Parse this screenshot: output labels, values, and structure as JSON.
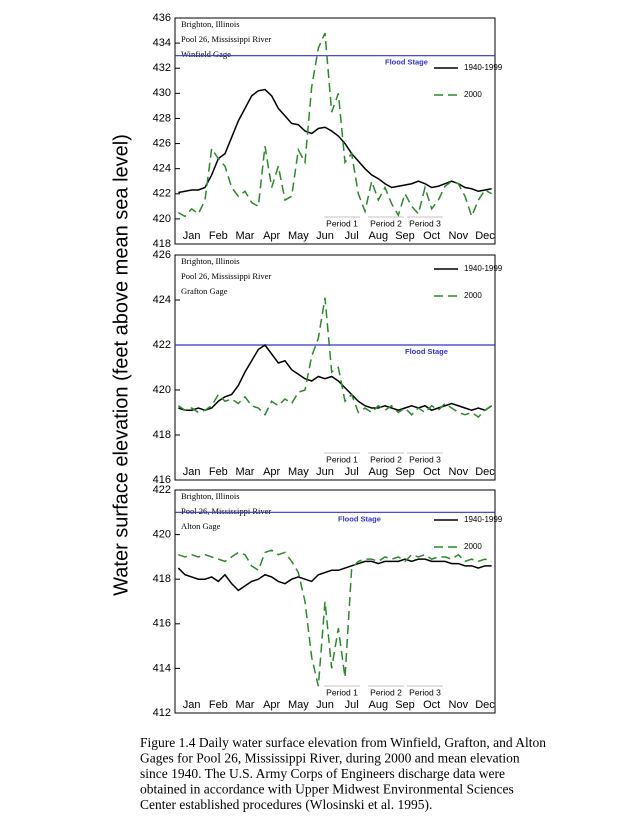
{
  "figure": {
    "y_label": "Water surface elevation (feet above mean sea level)",
    "caption": [
      "Figure 1.4 Daily water surface elevation from Winfield, Grafton, and Alton",
      "Gages for  Pool 26, Mississippi River, during 2000 and mean elevation",
      "since 1940.  The U.S. Army Corps of Engineers discharge data were",
      "obtained in accordance with Upper Midwest Environmental Sciences",
      "Center established procedures (Wlosinski et al. 1995)."
    ]
  },
  "chart_data": [
    {
      "type": "line",
      "annotations": [
        "Brighton, Illinois",
        "Pool 26, Mississippi River",
        "Winfield Gage"
      ],
      "flood_stage": {
        "value": 433,
        "label": "Flood Stage",
        "color": "#3333cc"
      },
      "period_labels": [
        "Period 1",
        "Period 2",
        "Period 3"
      ],
      "categories": [
        null,
        null,
        "Jan",
        null,
        null,
        null,
        "Feb",
        null,
        null,
        null,
        "Mar",
        null,
        null,
        null,
        "Apr",
        null,
        null,
        null,
        "May",
        null,
        null,
        null,
        "Jun",
        null,
        null,
        null,
        "Jul",
        null,
        null,
        null,
        "Aug",
        null,
        null,
        null,
        "Sep",
        null,
        null,
        null,
        "Oct",
        null,
        null,
        null,
        "Nov",
        null,
        null,
        null,
        "Dec",
        null
      ],
      "ylim": [
        418,
        436
      ],
      "yticks": [
        418,
        420,
        422,
        424,
        426,
        428,
        430,
        432,
        434,
        436
      ],
      "series": [
        {
          "name": "1940-1999",
          "color": "#000000",
          "style": "solid",
          "values": [
            422.1,
            422.2,
            422.3,
            422.3,
            422.5,
            423.5,
            424.8,
            425.2,
            426.5,
            427.8,
            428.8,
            429.8,
            430.2,
            430.3,
            429.8,
            428.8,
            428.2,
            427.6,
            427.5,
            427.0,
            426.8,
            427.2,
            427.3,
            427.0,
            426.6,
            426.0,
            425.2,
            424.6,
            424.0,
            423.5,
            423.2,
            422.8,
            422.5,
            422.6,
            422.7,
            422.8,
            423.0,
            422.8,
            422.5,
            422.6,
            422.8,
            423.0,
            422.8,
            422.5,
            422.4,
            422.2,
            422.3,
            422.4
          ]
        },
        {
          "name": "2000",
          "color": "#2a8a2a",
          "style": "dashed",
          "values": [
            420.5,
            420.2,
            420.8,
            420.4,
            421.5,
            425.6,
            424.8,
            424.2,
            422.5,
            421.8,
            422.2,
            421.3,
            421.0,
            425.8,
            422.5,
            424.2,
            421.5,
            421.8,
            425.5,
            424.5,
            430.5,
            433.6,
            434.8,
            428.5,
            430.0,
            424.5,
            425.2,
            422.0,
            420.6,
            423.0,
            421.5,
            422.5,
            421.2,
            420.3,
            422.0,
            421.0,
            420.4,
            422.5,
            420.8,
            421.5,
            422.6,
            423.0,
            422.8,
            421.8,
            420.2,
            421.5,
            422.3,
            422.0
          ]
        }
      ]
    },
    {
      "type": "line",
      "annotations": [
        "Brighton, Illinois",
        "Pool 26, Mississippi River",
        "Grafton Gage"
      ],
      "flood_stage": {
        "value": 422,
        "label": "Flood Stage",
        "color": "#3333cc"
      },
      "period_labels": [
        "Period 1",
        "Period 2",
        "Period 3"
      ],
      "categories": [
        null,
        null,
        "Jan",
        null,
        null,
        null,
        "Feb",
        null,
        null,
        null,
        "Mar",
        null,
        null,
        null,
        "Apr",
        null,
        null,
        null,
        "May",
        null,
        null,
        null,
        "Jun",
        null,
        null,
        null,
        "Jul",
        null,
        null,
        null,
        "Aug",
        null,
        null,
        null,
        "Sep",
        null,
        null,
        null,
        "Oct",
        null,
        null,
        null,
        "Nov",
        null,
        null,
        null,
        "Dec",
        null
      ],
      "ylim": [
        416,
        426
      ],
      "yticks": [
        416,
        418,
        420,
        422,
        424,
        426
      ],
      "series": [
        {
          "name": "1940-1999",
          "color": "#000000",
          "style": "solid",
          "values": [
            419.2,
            419.1,
            419.1,
            419.2,
            419.1,
            419.2,
            419.5,
            419.7,
            419.8,
            420.2,
            420.8,
            421.3,
            421.8,
            422.0,
            421.6,
            421.2,
            421.3,
            420.9,
            420.7,
            420.5,
            420.4,
            420.6,
            420.5,
            420.6,
            420.4,
            420.1,
            419.8,
            419.5,
            419.3,
            419.2,
            419.2,
            419.3,
            419.2,
            419.1,
            419.2,
            419.3,
            419.2,
            419.3,
            419.1,
            419.2,
            419.3,
            419.4,
            419.3,
            419.2,
            419.1,
            419.2,
            419.1,
            419.3
          ]
        },
        {
          "name": "2000",
          "color": "#2a8a2a",
          "style": "dashed",
          "values": [
            419.3,
            419.1,
            419.2,
            419.0,
            419.1,
            419.3,
            419.8,
            419.5,
            419.6,
            419.4,
            419.7,
            419.3,
            419.2,
            418.9,
            419.5,
            419.3,
            419.6,
            419.4,
            419.9,
            420.0,
            421.5,
            422.3,
            424.1,
            420.8,
            421.0,
            419.5,
            419.8,
            419.0,
            419.2,
            419.0,
            419.3,
            419.1,
            419.3,
            419.0,
            419.2,
            418.9,
            419.2,
            419.0,
            419.3,
            419.1,
            419.4,
            419.2,
            419.0,
            418.9,
            419.0,
            418.8,
            419.1,
            419.3
          ]
        }
      ]
    },
    {
      "type": "line",
      "annotations": [
        "Brighton, Illinois",
        "Pool 26, Mississippi River",
        "Alton Gage"
      ],
      "flood_stage": {
        "value": 421,
        "label": "Flood Stage",
        "color": "#3333cc"
      },
      "period_labels": [
        "Period 1",
        "Period 2",
        "Period 3"
      ],
      "categories": [
        null,
        null,
        "Jan",
        null,
        null,
        null,
        "Feb",
        null,
        null,
        null,
        "Mar",
        null,
        null,
        null,
        "Apr",
        null,
        null,
        null,
        "May",
        null,
        null,
        null,
        "Jun",
        null,
        null,
        null,
        "Jul",
        null,
        null,
        null,
        "Aug",
        null,
        null,
        null,
        "Sep",
        null,
        null,
        null,
        "Oct",
        null,
        null,
        null,
        "Nov",
        null,
        null,
        null,
        "Dec",
        null
      ],
      "ylim": [
        412,
        422
      ],
      "yticks": [
        412,
        414,
        416,
        418,
        420,
        422
      ],
      "series": [
        {
          "name": "1940-1999",
          "color": "#000000",
          "style": "solid",
          "values": [
            418.5,
            418.2,
            418.1,
            418.0,
            418.0,
            418.1,
            417.9,
            418.2,
            417.8,
            417.5,
            417.7,
            417.9,
            418.0,
            418.2,
            418.1,
            417.9,
            417.8,
            418.0,
            418.1,
            418.0,
            417.9,
            418.2,
            418.3,
            418.4,
            418.4,
            418.5,
            418.6,
            418.7,
            418.8,
            418.8,
            418.7,
            418.8,
            418.8,
            418.8,
            418.9,
            418.8,
            418.9,
            418.9,
            418.8,
            418.8,
            418.8,
            418.7,
            418.7,
            418.6,
            418.6,
            418.5,
            418.6,
            418.6
          ]
        },
        {
          "name": "2000",
          "color": "#2a8a2a",
          "style": "dashed",
          "values": [
            419.1,
            419.0,
            419.1,
            419.0,
            419.1,
            419.0,
            418.9,
            418.8,
            419.0,
            419.2,
            419.1,
            418.6,
            418.4,
            419.2,
            419.3,
            419.1,
            419.2,
            418.8,
            418.3,
            417.0,
            414.5,
            413.2,
            417.0,
            414.0,
            415.8,
            413.6,
            418.5,
            418.8,
            418.9,
            418.9,
            418.8,
            419.0,
            418.9,
            419.0,
            418.8,
            419.1,
            419.0,
            419.1,
            418.9,
            419.0,
            419.0,
            418.9,
            419.1,
            418.8,
            418.9,
            418.8,
            418.9,
            418.8
          ]
        }
      ]
    }
  ]
}
